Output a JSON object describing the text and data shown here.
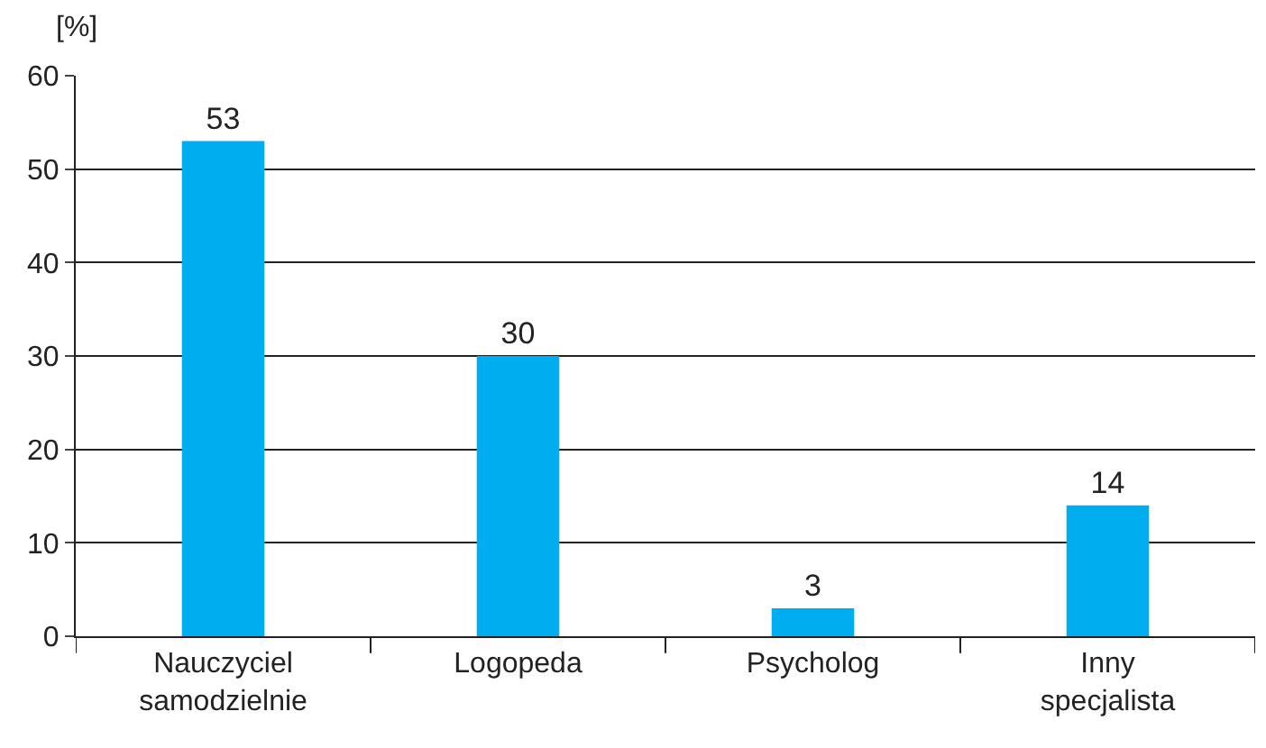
{
  "chart_data": {
    "type": "bar",
    "ylabel": "[%]",
    "categories": [
      "Nauczyciel\nsamodzielnie",
      "Logopeda",
      "Psycholog",
      "Inny\nspecjalista"
    ],
    "values": [
      53,
      30,
      3,
      14
    ],
    "color": "#00aeef",
    "ylim": [
      0,
      60
    ],
    "yticks": [
      0,
      10,
      20,
      30,
      40,
      50,
      60
    ],
    "grid": "y",
    "data_labels": true
  }
}
